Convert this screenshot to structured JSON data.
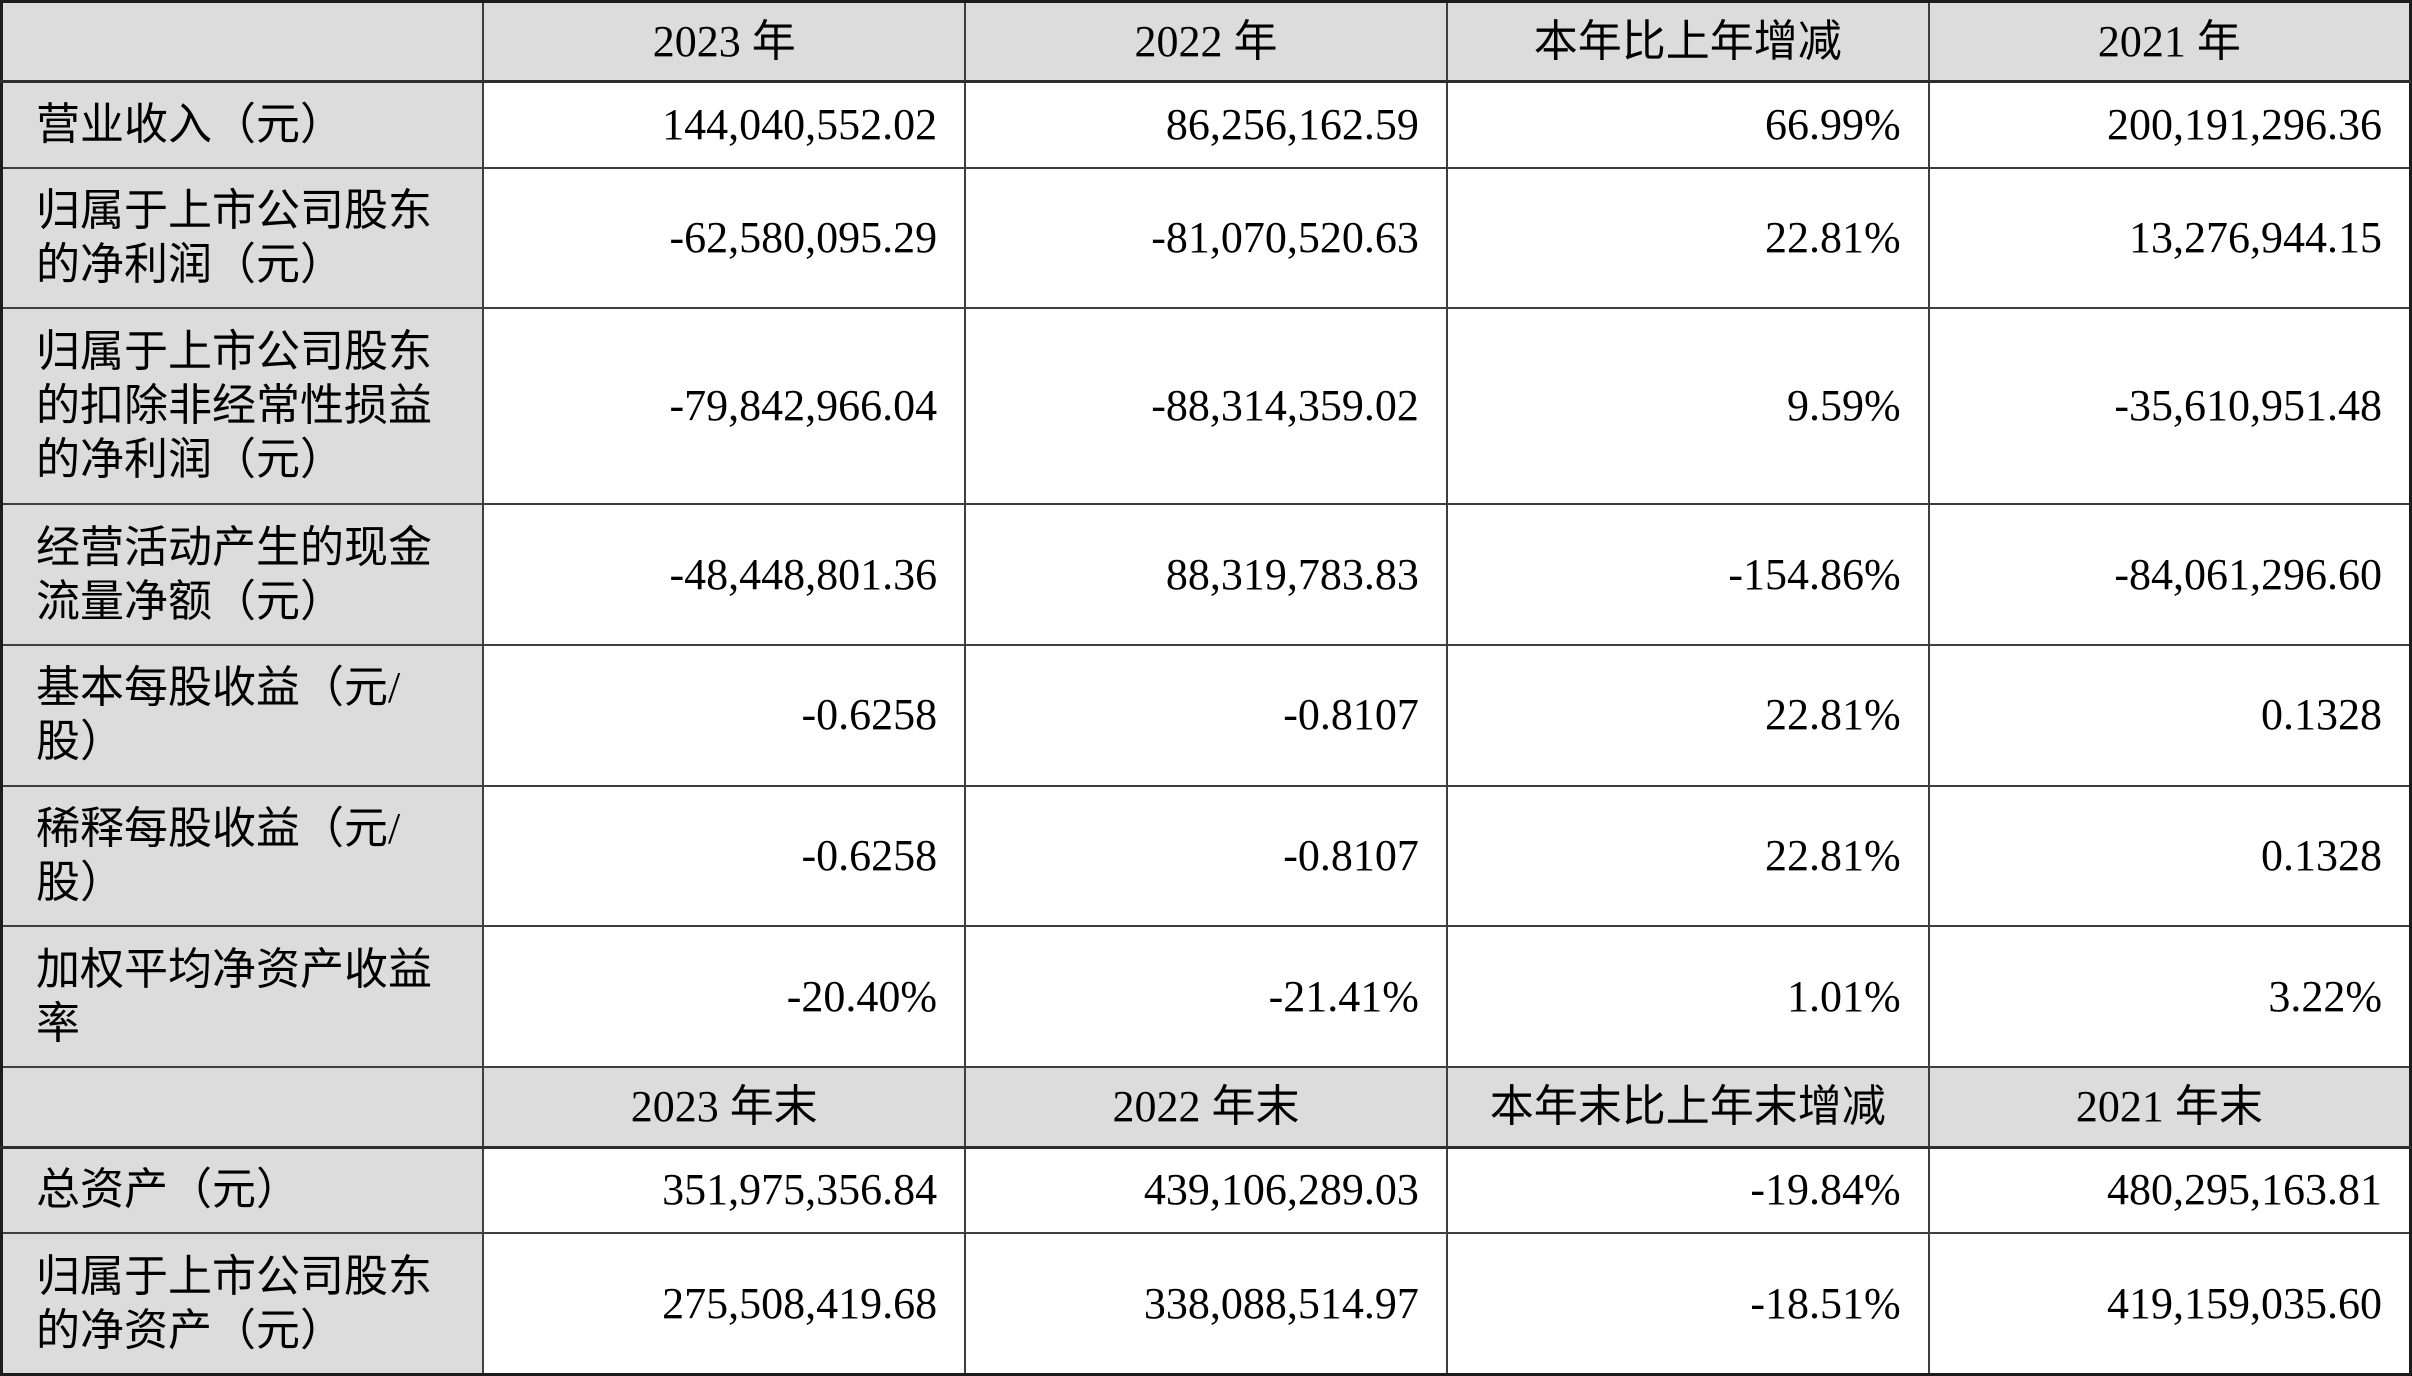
{
  "document": {
    "kind": "financial-key-indicators-table",
    "language": "zh-CN"
  },
  "colors": {
    "header_bg": "#dcdcdc",
    "label_bg": "#dcdcdc",
    "cell_bg": "#ffffff",
    "border": "#3f3f3f",
    "outer_border": "#1c1c1c",
    "header_sep": "#2e2e2e",
    "text": "#000000"
  },
  "sections": [
    {
      "name": "annual-results",
      "header": [
        "",
        "2023 年",
        "2022 年",
        "本年比上年增减",
        "2021 年"
      ],
      "rows": [
        {
          "label": "营业收入（元）",
          "values": [
            "144,040,552.02",
            "86,256,162.59",
            "66.99%",
            "200,191,296.36"
          ]
        },
        {
          "label": "归属于上市公司股东的净利润（元）",
          "values": [
            "-62,580,095.29",
            "-81,070,520.63",
            "22.81%",
            "13,276,944.15"
          ]
        },
        {
          "label": "归属于上市公司股东的扣除非经常性损益的净利润（元）",
          "values": [
            "-79,842,966.04",
            "-88,314,359.02",
            "9.59%",
            "-35,610,951.48"
          ]
        },
        {
          "label": "经营活动产生的现金流量净额（元）",
          "values": [
            "-48,448,801.36",
            "88,319,783.83",
            "-154.86%",
            "-84,061,296.60"
          ]
        },
        {
          "label": "基本每股收益（元/股）",
          "values": [
            "-0.6258",
            "-0.8107",
            "22.81%",
            "0.1328"
          ]
        },
        {
          "label": "稀释每股收益（元/股）",
          "values": [
            "-0.6258",
            "-0.8107",
            "22.81%",
            "0.1328"
          ]
        },
        {
          "label": "加权平均净资产收益率",
          "values": [
            "-20.40%",
            "-21.41%",
            "1.01%",
            "3.22%"
          ]
        }
      ]
    },
    {
      "name": "period-end",
      "header": [
        "",
        "2023 年末",
        "2022 年末",
        "本年末比上年末增减",
        "2021 年末"
      ],
      "rows": [
        {
          "label": "总资产（元）",
          "values": [
            "351,975,356.84",
            "439,106,289.03",
            "-19.84%",
            "480,295,163.81"
          ]
        },
        {
          "label": "归属于上市公司股东的净资产（元）",
          "values": [
            "275,508,419.68",
            "338,088,514.97",
            "-18.51%",
            "419,159,035.60"
          ]
        }
      ]
    }
  ]
}
